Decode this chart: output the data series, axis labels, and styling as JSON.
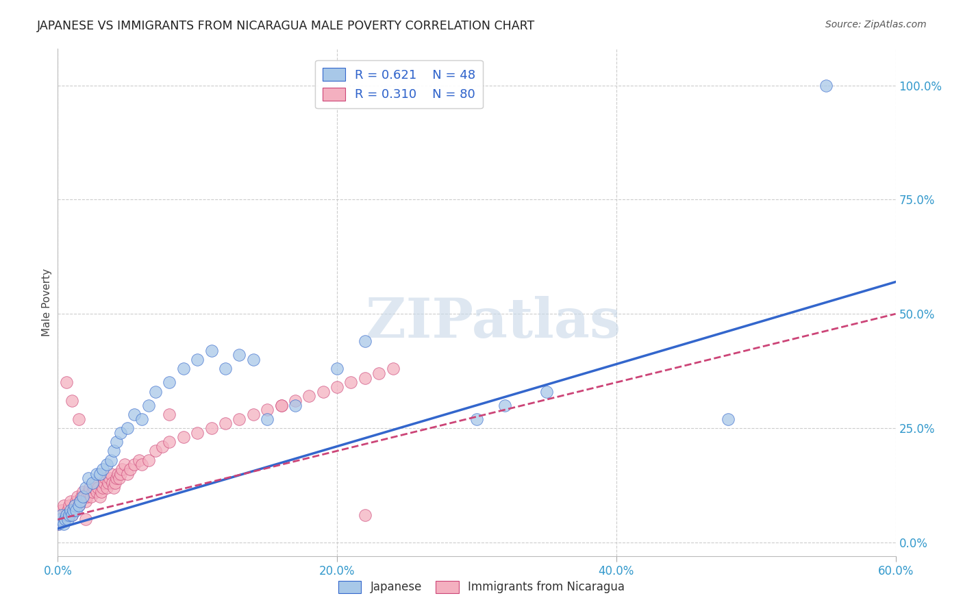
{
  "title": "JAPANESE VS IMMIGRANTS FROM NICARAGUA MALE POVERTY CORRELATION CHART",
  "source": "Source: ZipAtlas.com",
  "xlim": [
    0.0,
    0.6
  ],
  "ylim": [
    -0.03,
    1.08
  ],
  "ylabel": "Male Poverty",
  "legend1_R": "0.621",
  "legend1_N": "48",
  "legend2_R": "0.310",
  "legend2_N": "80",
  "blue_color": "#a8c8e8",
  "pink_color": "#f4b0c0",
  "blue_line_color": "#3366cc",
  "pink_line_color": "#cc4477",
  "watermark": "ZIPatlas",
  "xtick_vals": [
    0.0,
    0.2,
    0.4,
    0.6
  ],
  "xtick_labels": [
    "0.0%",
    "20.0%",
    "40.0%",
    "60.0%"
  ],
  "ytick_vals": [
    0.0,
    0.25,
    0.5,
    0.75,
    1.0
  ],
  "ytick_labels": [
    "0.0%",
    "25.0%",
    "50.0%",
    "75.0%",
    "100.0%"
  ],
  "japanese_x": [
    0.001,
    0.002,
    0.003,
    0.004,
    0.005,
    0.006,
    0.007,
    0.008,
    0.009,
    0.01,
    0.011,
    0.012,
    0.013,
    0.015,
    0.016,
    0.018,
    0.02,
    0.022,
    0.025,
    0.028,
    0.03,
    0.032,
    0.035,
    0.038,
    0.04,
    0.042,
    0.045,
    0.05,
    0.055,
    0.06,
    0.065,
    0.07,
    0.08,
    0.09,
    0.1,
    0.11,
    0.12,
    0.13,
    0.14,
    0.15,
    0.17,
    0.2,
    0.22,
    0.3,
    0.32,
    0.35,
    0.48,
    0.55
  ],
  "japanese_y": [
    0.04,
    0.05,
    0.06,
    0.04,
    0.05,
    0.06,
    0.05,
    0.06,
    0.07,
    0.06,
    0.07,
    0.08,
    0.07,
    0.08,
    0.09,
    0.1,
    0.12,
    0.14,
    0.13,
    0.15,
    0.15,
    0.16,
    0.17,
    0.18,
    0.2,
    0.22,
    0.24,
    0.25,
    0.28,
    0.27,
    0.3,
    0.33,
    0.35,
    0.38,
    0.4,
    0.42,
    0.38,
    0.41,
    0.4,
    0.27,
    0.3,
    0.38,
    0.44,
    0.27,
    0.3,
    0.33,
    0.27,
    1.0
  ],
  "nicaragua_x": [
    0.0,
    0.001,
    0.002,
    0.003,
    0.004,
    0.005,
    0.006,
    0.007,
    0.008,
    0.009,
    0.01,
    0.011,
    0.012,
    0.013,
    0.014,
    0.015,
    0.016,
    0.017,
    0.018,
    0.019,
    0.02,
    0.021,
    0.022,
    0.023,
    0.024,
    0.025,
    0.026,
    0.027,
    0.028,
    0.029,
    0.03,
    0.031,
    0.032,
    0.033,
    0.034,
    0.035,
    0.036,
    0.037,
    0.038,
    0.039,
    0.04,
    0.041,
    0.042,
    0.043,
    0.044,
    0.045,
    0.046,
    0.048,
    0.05,
    0.052,
    0.055,
    0.058,
    0.06,
    0.065,
    0.07,
    0.075,
    0.08,
    0.09,
    0.1,
    0.11,
    0.12,
    0.13,
    0.14,
    0.15,
    0.16,
    0.17,
    0.18,
    0.19,
    0.2,
    0.21,
    0.22,
    0.23,
    0.24,
    0.08,
    0.16,
    0.22,
    0.006,
    0.01,
    0.015,
    0.02
  ],
  "nicaragua_y": [
    0.04,
    0.05,
    0.06,
    0.07,
    0.08,
    0.05,
    0.06,
    0.07,
    0.08,
    0.09,
    0.06,
    0.07,
    0.08,
    0.09,
    0.1,
    0.08,
    0.09,
    0.1,
    0.11,
    0.1,
    0.09,
    0.1,
    0.11,
    0.12,
    0.1,
    0.11,
    0.12,
    0.13,
    0.11,
    0.12,
    0.1,
    0.11,
    0.12,
    0.13,
    0.14,
    0.12,
    0.13,
    0.14,
    0.15,
    0.13,
    0.12,
    0.13,
    0.14,
    0.15,
    0.14,
    0.15,
    0.16,
    0.17,
    0.15,
    0.16,
    0.17,
    0.18,
    0.17,
    0.18,
    0.2,
    0.21,
    0.22,
    0.23,
    0.24,
    0.25,
    0.26,
    0.27,
    0.28,
    0.29,
    0.3,
    0.31,
    0.32,
    0.33,
    0.34,
    0.35,
    0.36,
    0.37,
    0.38,
    0.28,
    0.3,
    0.06,
    0.35,
    0.31,
    0.27,
    0.05
  ],
  "blue_line_slope": 0.9,
  "blue_line_intercept": 0.03,
  "pink_line_slope": 0.75,
  "pink_line_intercept": 0.05
}
